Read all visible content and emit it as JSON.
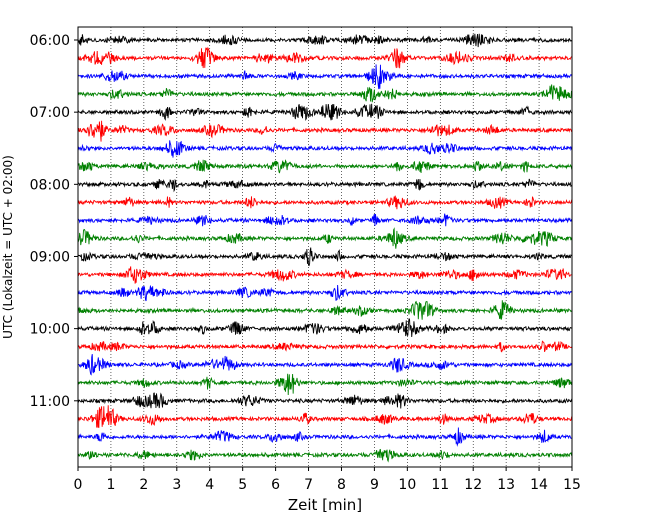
{
  "chart_data": {
    "type": "line",
    "title": "",
    "xlabel": "Zeit  [min]",
    "ylabel": "UTC (Lokalzeit = UTC + 02:00)",
    "xlim": [
      0,
      15
    ],
    "xticks": [
      0,
      1,
      2,
      3,
      4,
      5,
      6,
      7,
      8,
      9,
      10,
      11,
      12,
      13,
      14,
      15
    ],
    "grid": "vertical-dotted",
    "row_interval_minutes": 15,
    "row_colors": [
      "#000000",
      "#ff0000",
      "#0000ff",
      "#008000"
    ],
    "y_tick_labels": [
      "06:00",
      "07:00",
      "08:00",
      "09:00",
      "10:00",
      "11:00"
    ],
    "rows": [
      "06:00",
      "06:15",
      "06:30",
      "06:45",
      "07:00",
      "07:15",
      "07:30",
      "07:45",
      "08:00",
      "08:15",
      "08:30",
      "08:45",
      "09:00",
      "09:15",
      "09:30",
      "09:45",
      "10:00",
      "10:15",
      "10:30",
      "10:45",
      "11:00",
      "11:15",
      "11:30",
      "11:45"
    ]
  }
}
